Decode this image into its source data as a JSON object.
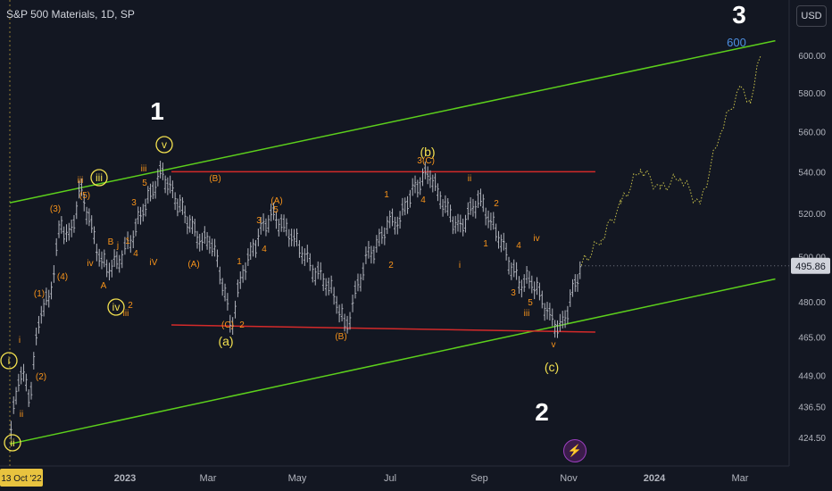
{
  "header": {
    "title": "S&P 500 Materials, 1D, SP",
    "currency_button": "USD"
  },
  "colors": {
    "background": "#131722",
    "channel": "#5ccf1c",
    "resistance": "#d42a2a",
    "wave_orange": "#f7931a",
    "wave_yellow": "#f2e04f",
    "wave_white": "#ffffff",
    "target_blue": "#4d8fe0",
    "candles": "#b2b5be",
    "projection": "#c9c24a"
  },
  "chart_data": {
    "type": "line",
    "title": "S&P 500 Materials, 1D, SP",
    "xlabel": "",
    "ylabel": "",
    "scale": "log",
    "ylim": [
      418,
      616
    ],
    "x_tick_labels": [
      "13 Oct '22",
      "2023",
      "Mar",
      "May",
      "Jul",
      "Sep",
      "Nov",
      "2024",
      "Mar"
    ],
    "y_tick_labels": [
      "600.00",
      "580.00",
      "560.00",
      "540.00",
      "520.00",
      "500.00",
      "480.00",
      "465.00",
      "449.00",
      "436.50",
      "424.50"
    ],
    "last_price": "495.86",
    "target_label": "600",
    "series": [
      {
        "values_description": "price",
        "points": [
          [
            "2022-10-13",
            424
          ],
          [
            "2022-10-20",
            452
          ],
          [
            "2022-10-27",
            441
          ],
          [
            "2022-11-03",
            476
          ],
          [
            "2022-11-10",
            482
          ],
          [
            "2022-11-17",
            515
          ],
          [
            "2022-11-24",
            508
          ],
          [
            "2022-12-01",
            532
          ],
          [
            "2022-12-08",
            515
          ],
          [
            "2022-12-15",
            498
          ],
          [
            "2022-12-22",
            495
          ],
          [
            "2022-12-29",
            500
          ],
          [
            "2023-01-06",
            509
          ],
          [
            "2023-01-13",
            521
          ],
          [
            "2023-01-20",
            530
          ],
          [
            "2023-01-27",
            540
          ],
          [
            "2023-02-03",
            530
          ],
          [
            "2023-02-10",
            522
          ],
          [
            "2023-02-17",
            514
          ],
          [
            "2023-02-24",
            507
          ],
          [
            "2023-03-03",
            508
          ],
          [
            "2023-03-10",
            492
          ],
          [
            "2023-03-17",
            469
          ],
          [
            "2023-03-24",
            492
          ],
          [
            "2023-03-31",
            502
          ],
          [
            "2023-04-07",
            513
          ],
          [
            "2023-04-14",
            519
          ],
          [
            "2023-04-21",
            514
          ],
          [
            "2023-04-28",
            509
          ],
          [
            "2023-05-05",
            502
          ],
          [
            "2023-05-12",
            494
          ],
          [
            "2023-05-19",
            490
          ],
          [
            "2023-05-26",
            482
          ],
          [
            "2023-06-02",
            468
          ],
          [
            "2023-06-09",
            485
          ],
          [
            "2023-06-16",
            500
          ],
          [
            "2023-06-23",
            505
          ],
          [
            "2023-06-30",
            516
          ],
          [
            "2023-07-07",
            516
          ],
          [
            "2023-07-14",
            528
          ],
          [
            "2023-07-21",
            535
          ],
          [
            "2023-07-28",
            540
          ],
          [
            "2023-08-04",
            528
          ],
          [
            "2023-08-11",
            520
          ],
          [
            "2023-08-18",
            512
          ],
          [
            "2023-08-25",
            520
          ],
          [
            "2023-09-01",
            527
          ],
          [
            "2023-09-08",
            517
          ],
          [
            "2023-09-15",
            509
          ],
          [
            "2023-09-22",
            497
          ],
          [
            "2023-09-29",
            488
          ],
          [
            "2023-10-06",
            490
          ],
          [
            "2023-10-13",
            482
          ],
          [
            "2023-10-20",
            472
          ],
          [
            "2023-10-27",
            468
          ],
          [
            "2023-11-03",
            482
          ],
          [
            "2023-11-10",
            496
          ]
        ]
      },
      {
        "values_description": "projection",
        "points": [
          [
            "2023-11-10",
            496
          ],
          [
            "2023-11-24",
            508
          ],
          [
            "2023-12-08",
            524
          ],
          [
            "2023-12-22",
            542
          ],
          [
            "2024-01-05",
            531
          ],
          [
            "2024-01-19",
            538
          ],
          [
            "2024-02-02",
            523
          ],
          [
            "2024-02-16",
            560
          ],
          [
            "2024-03-01",
            582
          ],
          [
            "2024-03-08",
            576
          ],
          [
            "2024-03-15",
            600
          ]
        ]
      }
    ],
    "channel_lines": [
      {
        "name": "upper",
        "from": [
          "2022-10-13",
          525
        ],
        "to": [
          "2024-03-25",
          608
        ]
      },
      {
        "name": "lower",
        "from": [
          "2022-10-13",
          422
        ],
        "to": [
          "2024-03-25",
          490
        ]
      },
      {
        "name": "resistance",
        "from": [
          "2023-02-03",
          540
        ],
        "to": [
          "2023-11-20",
          540
        ]
      },
      {
        "name": "support",
        "from": [
          "2023-02-03",
          470
        ],
        "to": [
          "2023-11-20",
          467
        ]
      }
    ],
    "wave_labels": {
      "white": [
        "1",
        "2",
        "3"
      ],
      "yellow_circled": [
        "i",
        "ii",
        "iii",
        "iv",
        "v"
      ],
      "yellow": [
        "(a)",
        "(b)",
        "(c)"
      ],
      "orange": [
        "(1)",
        "(2)",
        "(3)",
        "(4)",
        "(5)",
        "i",
        "ii",
        "iii",
        "iv",
        "v",
        "A",
        "B",
        "C",
        "(A)",
        "(B)",
        "(C)",
        "1",
        "2",
        "3",
        "4",
        "5"
      ]
    }
  }
}
